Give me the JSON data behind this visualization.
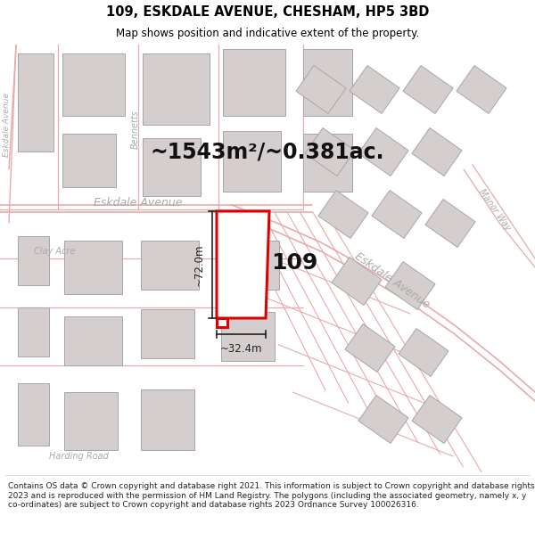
{
  "title": "109, ESKDALE AVENUE, CHESHAM, HP5 3BD",
  "subtitle": "Map shows position and indicative extent of the property.",
  "area_text": "~1543m²/~0.381ac.",
  "property_number": "109",
  "dim_vertical": "~72.0m",
  "dim_horizontal": "~32.4m",
  "map_bg": "#f7f4f4",
  "road_color": "#e8aaaa",
  "road_fill": "#f7f4f4",
  "building_color": "#d4cece",
  "building_edge": "#aaa4a4",
  "property_fill": "#ffffff",
  "property_edge": "#dd0000",
  "dim_line_color": "#222222",
  "road_label_color": "#aaaaaa",
  "eskdale_label_color": "#aaaaaa",
  "area_text_color": "#111111",
  "footer_text": "Contains OS data © Crown copyright and database right 2021. This information is subject to Crown copyright and database rights 2023 and is reproduced with the permission of HM Land Registry. The polygons (including the associated geometry, namely x, y co-ordinates) are subject to Crown copyright and database rights 2023 Ordnance Survey 100026316.",
  "title_fontsize": 10.5,
  "subtitle_fontsize": 8.5,
  "area_fontsize": 17,
  "number_fontsize": 18,
  "dim_fontsize": 8.5,
  "road_label_fontsize": 9,
  "footer_fontsize": 6.5
}
